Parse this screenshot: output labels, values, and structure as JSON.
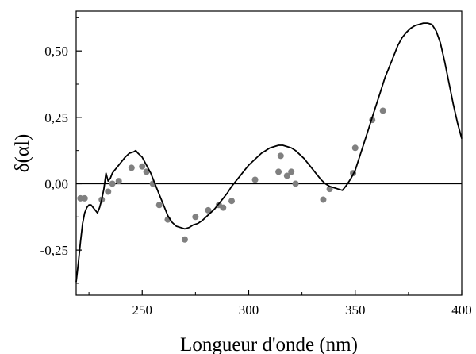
{
  "chart_data": {
    "type": "line",
    "xlabel": "Longueur d'onde (nm)",
    "ylabel": "δ(αl)",
    "xlim": [
      219,
      400
    ],
    "ylim": [
      -0.42,
      0.65
    ],
    "x_ticks": [
      250,
      300,
      350,
      400
    ],
    "x_tick_labels": [
      "250",
      "300",
      "350",
      "400"
    ],
    "y_ticks": [
      0.5,
      0.25,
      0.0,
      -0.25
    ],
    "y_tick_labels": [
      "0,50",
      "0,25",
      "0,00",
      "-0,25"
    ],
    "zero_line": 0,
    "grid": false,
    "series": [
      {
        "kind": "line",
        "color": "#000000",
        "points": [
          [
            219,
            -0.37
          ],
          [
            220,
            -0.3
          ],
          [
            221,
            -0.22
          ],
          [
            222,
            -0.15
          ],
          [
            223,
            -0.11
          ],
          [
            224,
            -0.09
          ],
          [
            225,
            -0.08
          ],
          [
            226,
            -0.08
          ],
          [
            227,
            -0.09
          ],
          [
            228,
            -0.1
          ],
          [
            229,
            -0.11
          ],
          [
            230,
            -0.09
          ],
          [
            231,
            -0.06
          ],
          [
            232,
            -0.02
          ],
          [
            233,
            0.04
          ],
          [
            234,
            0.01
          ],
          [
            235,
            0.02
          ],
          [
            236,
            0.04
          ],
          [
            237,
            0.05
          ],
          [
            238,
            0.06
          ],
          [
            240,
            0.08
          ],
          [
            242,
            0.1
          ],
          [
            244,
            0.115
          ],
          [
            246,
            0.12
          ],
          [
            247,
            0.125
          ],
          [
            248,
            0.115
          ],
          [
            250,
            0.1
          ],
          [
            252,
            0.07
          ],
          [
            254,
            0.04
          ],
          [
            256,
            0.0
          ],
          [
            258,
            -0.04
          ],
          [
            260,
            -0.08
          ],
          [
            262,
            -0.12
          ],
          [
            264,
            -0.145
          ],
          [
            266,
            -0.16
          ],
          [
            268,
            -0.165
          ],
          [
            270,
            -0.17
          ],
          [
            272,
            -0.165
          ],
          [
            274,
            -0.155
          ],
          [
            276,
            -0.15
          ],
          [
            278,
            -0.14
          ],
          [
            280,
            -0.125
          ],
          [
            282,
            -0.11
          ],
          [
            284,
            -0.095
          ],
          [
            286,
            -0.075
          ],
          [
            288,
            -0.055
          ],
          [
            290,
            -0.035
          ],
          [
            292,
            -0.01
          ],
          [
            294,
            0.01
          ],
          [
            296,
            0.03
          ],
          [
            298,
            0.05
          ],
          [
            300,
            0.07
          ],
          [
            302,
            0.085
          ],
          [
            304,
            0.1
          ],
          [
            306,
            0.115
          ],
          [
            308,
            0.125
          ],
          [
            310,
            0.135
          ],
          [
            312,
            0.14
          ],
          [
            314,
            0.145
          ],
          [
            316,
            0.145
          ],
          [
            318,
            0.14
          ],
          [
            320,
            0.135
          ],
          [
            322,
            0.125
          ],
          [
            324,
            0.11
          ],
          [
            326,
            0.095
          ],
          [
            328,
            0.075
          ],
          [
            330,
            0.055
          ],
          [
            332,
            0.035
          ],
          [
            334,
            0.015
          ],
          [
            336,
            0.0
          ],
          [
            338,
            -0.01
          ],
          [
            340,
            -0.015
          ],
          [
            342,
            -0.02
          ],
          [
            344,
            -0.025
          ],
          [
            345,
            -0.015
          ],
          [
            346,
            -0.005
          ],
          [
            348,
            0.02
          ],
          [
            350,
            0.05
          ],
          [
            352,
            0.1
          ],
          [
            354,
            0.15
          ],
          [
            356,
            0.2
          ],
          [
            358,
            0.25
          ],
          [
            360,
            0.3
          ],
          [
            362,
            0.35
          ],
          [
            364,
            0.4
          ],
          [
            366,
            0.44
          ],
          [
            368,
            0.48
          ],
          [
            370,
            0.52
          ],
          [
            372,
            0.55
          ],
          [
            374,
            0.57
          ],
          [
            376,
            0.585
          ],
          [
            378,
            0.595
          ],
          [
            380,
            0.6
          ],
          [
            382,
            0.605
          ],
          [
            384,
            0.605
          ],
          [
            386,
            0.6
          ],
          [
            388,
            0.575
          ],
          [
            390,
            0.53
          ],
          [
            392,
            0.46
          ],
          [
            394,
            0.38
          ],
          [
            396,
            0.3
          ],
          [
            398,
            0.23
          ],
          [
            400,
            0.17
          ]
        ]
      },
      {
        "kind": "scatter",
        "color": "#808080",
        "points": [
          [
            221,
            -0.055
          ],
          [
            223,
            -0.055
          ],
          [
            231,
            -0.06
          ],
          [
            234,
            -0.03
          ],
          [
            236,
            0.0
          ],
          [
            239,
            0.01
          ],
          [
            245,
            0.06
          ],
          [
            250,
            0.065
          ],
          [
            252,
            0.045
          ],
          [
            255,
            0.0
          ],
          [
            258,
            -0.08
          ],
          [
            262,
            -0.135
          ],
          [
            270,
            -0.21
          ],
          [
            275,
            -0.125
          ],
          [
            281,
            -0.1
          ],
          [
            286,
            -0.08
          ],
          [
            288,
            -0.09
          ],
          [
            292,
            -0.065
          ],
          [
            303,
            0.015
          ],
          [
            314,
            0.045
          ],
          [
            315,
            0.105
          ],
          [
            318,
            0.03
          ],
          [
            320,
            0.045
          ],
          [
            322,
            0.0
          ],
          [
            335,
            -0.06
          ],
          [
            338,
            -0.02
          ],
          [
            349,
            0.04
          ],
          [
            350,
            0.135
          ],
          [
            358,
            0.24
          ],
          [
            363,
            0.275
          ]
        ]
      }
    ]
  }
}
